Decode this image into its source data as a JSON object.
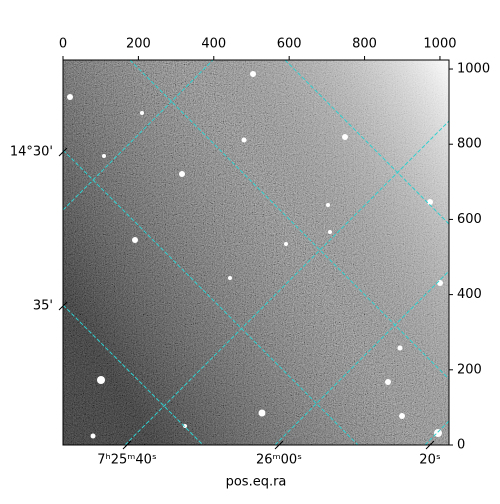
{
  "chart_data": {
    "type": "image",
    "xlabel": "pos.eq.ra",
    "xlim": [
      0,
      1024
    ],
    "ylim": [
      0,
      1024
    ],
    "xticks": [
      0,
      200,
      400,
      600,
      800,
      1000
    ],
    "yticks": [
      0,
      200,
      400,
      600,
      800,
      1000
    ],
    "ra_labels": [
      "7ʰ25ᵐ40ˢ",
      "26ᵐ00ˢ",
      "20ˢ"
    ],
    "dec_labels": [
      "14°30'",
      "35'"
    ],
    "grid_color": "#2fd0d0"
  }
}
